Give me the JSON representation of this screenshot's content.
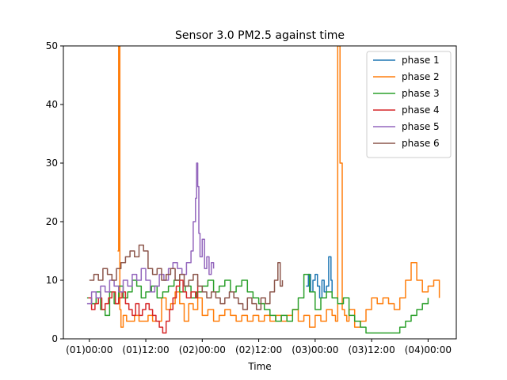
{
  "chart_data": {
    "type": "line",
    "title": "Sensor 3.0 PM2.5 against  time",
    "xlabel": "Time",
    "ylabel": "",
    "ylim": [
      0,
      50
    ],
    "xlim": [
      -0.23,
      3.25
    ],
    "y_ticks": [
      0,
      10,
      20,
      30,
      40,
      50
    ],
    "x_ticks": [
      {
        "value": 0.0,
        "label": "(01)00:00"
      },
      {
        "value": 0.5,
        "label": "(01)12:00"
      },
      {
        "value": 1.0,
        "label": "(02)00:00"
      },
      {
        "value": 1.5,
        "label": "(02)12:00"
      },
      {
        "value": 2.0,
        "label": "(03)00:00"
      },
      {
        "value": 2.5,
        "label": "(03)12:00"
      },
      {
        "value": 3.0,
        "label": "(04)00:00"
      }
    ],
    "grid": false,
    "legend_position": "top-right",
    "series": [
      {
        "name": "phase 1",
        "color": "#1f77b4",
        "x": [
          1.92,
          1.94,
          1.96,
          1.98,
          2.0,
          2.02,
          2.04,
          2.06,
          2.08,
          2.1,
          2.12,
          2.14,
          2.15
        ],
        "y": [
          9,
          11,
          8,
          10,
          11,
          9,
          7,
          10,
          8,
          9,
          14,
          10,
          8
        ]
      },
      {
        "name": "phase 2",
        "color": "#ff7f0e",
        "x": [
          0.25,
          0.26,
          0.27,
          0.28,
          0.3,
          0.33,
          0.36,
          0.4,
          0.44,
          0.48,
          0.52,
          0.56,
          0.6,
          0.64,
          0.68,
          0.72,
          0.76,
          0.8,
          0.84,
          0.88,
          0.92,
          0.96,
          1.0,
          1.05,
          1.1,
          1.15,
          1.2,
          1.25,
          1.3,
          1.35,
          1.4,
          1.45,
          1.5,
          1.55,
          1.6,
          1.65,
          1.7,
          1.75,
          1.8,
          1.85,
          1.9,
          1.95,
          2.0,
          2.05,
          2.1,
          2.15,
          2.18,
          2.2,
          2.22,
          2.24,
          2.26,
          2.28,
          2.3,
          2.35,
          2.4,
          2.45,
          2.5,
          2.55,
          2.6,
          2.65,
          2.7,
          2.75,
          2.8,
          2.85,
          2.9,
          2.95,
          3.0,
          3.05,
          3.1
        ],
        "y": [
          15,
          50,
          5,
          2,
          4,
          3,
          3,
          4,
          3,
          3,
          4,
          3,
          3,
          7,
          5,
          6,
          8,
          6,
          3,
          6,
          5,
          7,
          4,
          5,
          3,
          4,
          5,
          4,
          3,
          4,
          3,
          4,
          3,
          4,
          3,
          4,
          3,
          4,
          5,
          3,
          4,
          2,
          4,
          3,
          5,
          4,
          3,
          50,
          30,
          5,
          4,
          3,
          5,
          2,
          3,
          5,
          7,
          6,
          7,
          6,
          5,
          7,
          10,
          13,
          10,
          8,
          9,
          10,
          7
        ]
      },
      {
        "name": "phase 3",
        "color": "#2ca02c",
        "x": [
          -0.02,
          0.02,
          0.06,
          0.1,
          0.14,
          0.18,
          0.22,
          0.26,
          0.3,
          0.34,
          0.38,
          0.42,
          0.46,
          0.5,
          0.55,
          0.6,
          0.65,
          0.7,
          0.75,
          0.8,
          0.85,
          0.9,
          0.95,
          1.0,
          1.05,
          1.1,
          1.15,
          1.2,
          1.25,
          1.3,
          1.35,
          1.4,
          1.45,
          1.5,
          1.55,
          1.6,
          1.65,
          1.7,
          1.75,
          1.8,
          1.85,
          1.9,
          1.95,
          2.0,
          2.05,
          2.1,
          2.15,
          2.2,
          2.25,
          2.3,
          2.35,
          2.4,
          2.45,
          2.5,
          2.55,
          2.6,
          2.65,
          2.7,
          2.75,
          2.8,
          2.85,
          2.9,
          2.95,
          3.0
        ],
        "y": [
          7,
          6,
          8,
          5,
          4,
          8,
          6,
          9,
          7,
          8,
          10,
          9,
          7,
          8,
          9,
          7,
          8,
          9,
          10,
          8,
          9,
          7,
          8,
          9,
          10,
          8,
          9,
          10,
          8,
          9,
          10,
          8,
          7,
          6,
          5,
          4,
          3,
          4,
          3,
          5,
          7,
          11,
          8,
          5,
          7,
          8,
          7,
          6,
          7,
          4,
          3,
          2,
          1,
          1,
          1,
          1,
          1,
          1,
          2,
          3,
          4,
          5,
          6,
          7
        ]
      },
      {
        "name": "phase 4",
        "color": "#d62728",
        "x": [
          -0.01,
          0.02,
          0.05,
          0.08,
          0.11,
          0.14,
          0.17,
          0.2,
          0.23,
          0.26,
          0.29,
          0.32,
          0.35,
          0.38,
          0.41,
          0.44,
          0.47,
          0.5,
          0.53,
          0.56,
          0.59,
          0.62,
          0.65,
          0.68,
          0.71,
          0.74,
          0.77,
          0.8,
          0.83,
          0.86,
          0.9,
          0.94,
          0.96
        ],
        "y": [
          7,
          5,
          6,
          7,
          5,
          6,
          7,
          8,
          6,
          7,
          8,
          6,
          5,
          4,
          6,
          4,
          5,
          6,
          5,
          4,
          3,
          2,
          1,
          3,
          5,
          7,
          9,
          10,
          8,
          7,
          8,
          7,
          10
        ]
      },
      {
        "name": "phase 5",
        "color": "#9467bd",
        "x": [
          -0.02,
          0.02,
          0.06,
          0.1,
          0.14,
          0.18,
          0.22,
          0.26,
          0.3,
          0.34,
          0.38,
          0.42,
          0.46,
          0.5,
          0.54,
          0.58,
          0.62,
          0.66,
          0.7,
          0.74,
          0.78,
          0.82,
          0.86,
          0.9,
          0.92,
          0.94,
          0.95,
          0.96,
          0.97,
          0.98,
          1.0,
          1.02,
          1.04,
          1.06,
          1.08,
          1.1
        ],
        "y": [
          6,
          8,
          7,
          9,
          8,
          10,
          9,
          8,
          10,
          9,
          11,
          10,
          12,
          10,
          8,
          9,
          11,
          10,
          12,
          13,
          12,
          11,
          13,
          15,
          20,
          24,
          30,
          26,
          18,
          14,
          17,
          12,
          14,
          11,
          13,
          12
        ]
      },
      {
        "name": "phase 6",
        "color": "#8c564b",
        "x": [
          0.0,
          0.04,
          0.08,
          0.12,
          0.16,
          0.2,
          0.24,
          0.28,
          0.32,
          0.36,
          0.4,
          0.44,
          0.48,
          0.52,
          0.56,
          0.6,
          0.64,
          0.68,
          0.72,
          0.76,
          0.8,
          0.84,
          0.88,
          0.92,
          0.96,
          1.0,
          1.04,
          1.08,
          1.12,
          1.16,
          1.2,
          1.24,
          1.28,
          1.32,
          1.36,
          1.4,
          1.44,
          1.48,
          1.52,
          1.56,
          1.6,
          1.64,
          1.67,
          1.69,
          1.71
        ],
        "y": [
          10,
          11,
          10,
          12,
          11,
          10,
          12,
          13,
          14,
          15,
          14,
          16,
          15,
          12,
          11,
          12,
          10,
          11,
          12,
          10,
          11,
          9,
          10,
          11,
          9,
          8,
          7,
          8,
          7,
          6,
          7,
          8,
          7,
          6,
          5,
          7,
          6,
          5,
          7,
          6,
          8,
          10,
          13,
          9,
          10
        ]
      }
    ]
  }
}
